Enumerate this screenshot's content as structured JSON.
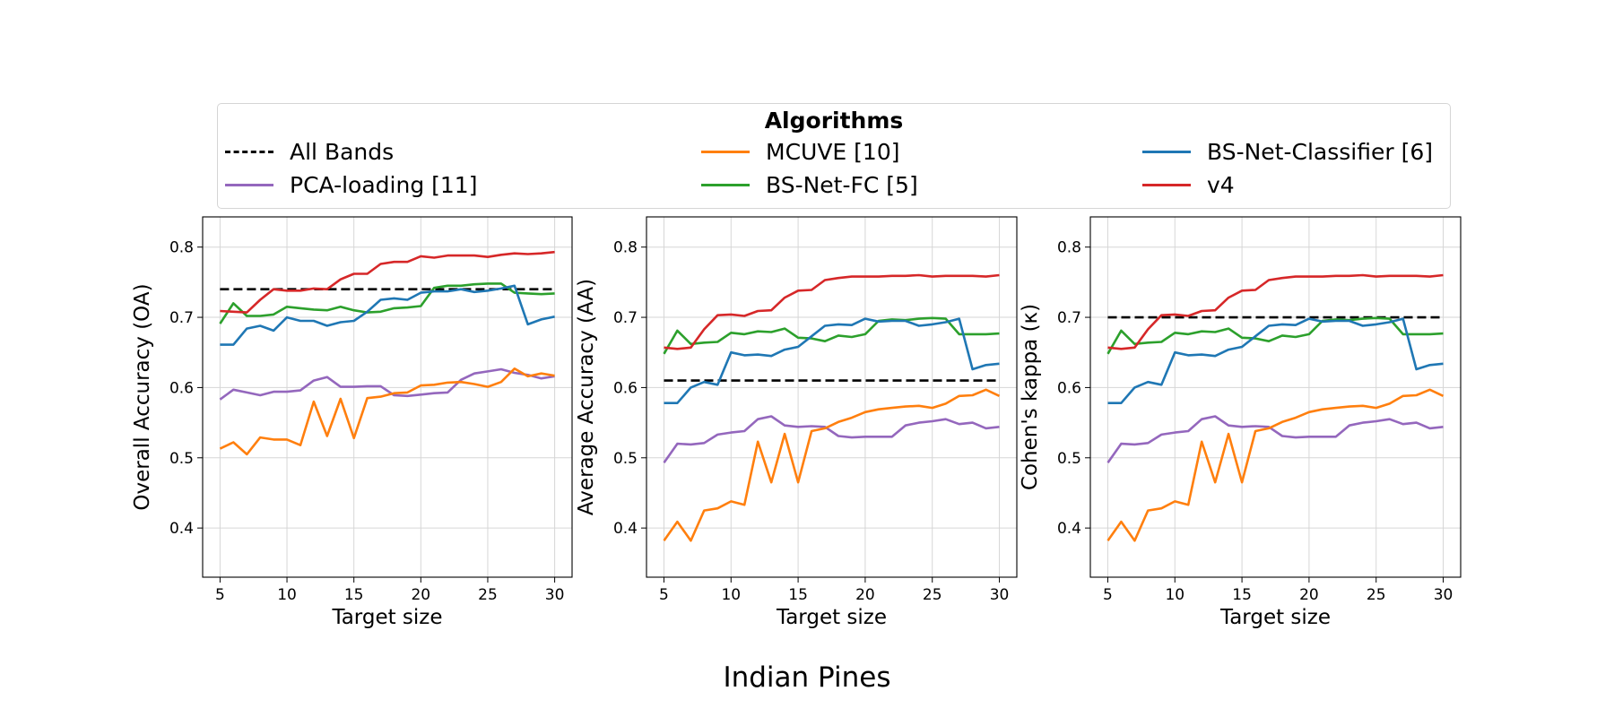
{
  "figure": {
    "suptitle": "Indian Pines",
    "legend_title": "Algorithms"
  },
  "legend": [
    {
      "name": "All Bands",
      "color": "#000000",
      "dashed": true
    },
    {
      "name": "MCUVE [10]",
      "color": "#ff7f0e",
      "dashed": false
    },
    {
      "name": "BS-Net-Classifier [6]",
      "color": "#1f77b4",
      "dashed": false
    },
    {
      "name": "PCA-loading [11]",
      "color": "#9467bd",
      "dashed": false
    },
    {
      "name": "BS-Net-FC [5]",
      "color": "#2ca02c",
      "dashed": false
    },
    {
      "name": "v4",
      "color": "#d62728",
      "dashed": false
    }
  ],
  "chart_data": [
    {
      "type": "line",
      "xlabel": "Target size",
      "ylabel": "Overall Accuracy (OA)",
      "xlim": [
        3.7,
        31.3
      ],
      "ylim": [
        0.33,
        0.843
      ],
      "xticks": [
        5,
        10,
        15,
        20,
        25,
        30
      ],
      "yticks": [
        0.4,
        0.5,
        0.6,
        0.7,
        0.8
      ],
      "grid": true,
      "x": [
        5,
        6,
        7,
        8,
        9,
        10,
        11,
        12,
        13,
        14,
        15,
        16,
        17,
        18,
        19,
        20,
        21,
        22,
        23,
        24,
        25,
        26,
        27,
        28,
        29,
        30
      ],
      "series": [
        {
          "name": "All Bands",
          "color": "#000000",
          "dashed": true,
          "values": [
            0.74,
            0.74,
            0.74,
            0.74,
            0.74,
            0.74,
            0.74,
            0.74,
            0.74,
            0.74,
            0.74,
            0.74,
            0.74,
            0.74,
            0.74,
            0.74,
            0.74,
            0.74,
            0.74,
            0.74,
            0.74,
            0.74,
            0.74,
            0.74,
            0.74,
            0.74
          ]
        },
        {
          "name": "PCA-loading [11]",
          "color": "#9467bd",
          "values": [
            0.583,
            0.597,
            0.593,
            0.589,
            0.594,
            0.594,
            0.596,
            0.61,
            0.615,
            0.601,
            0.601,
            0.602,
            0.602,
            0.589,
            0.588,
            0.59,
            0.592,
            0.593,
            0.611,
            0.62,
            0.623,
            0.626,
            0.621,
            0.618,
            0.613,
            0.616
          ]
        },
        {
          "name": "MCUVE [10]",
          "color": "#ff7f0e",
          "values": [
            0.513,
            0.522,
            0.505,
            0.529,
            0.526,
            0.526,
            0.518,
            0.58,
            0.531,
            0.584,
            0.528,
            0.585,
            0.587,
            0.592,
            0.593,
            0.603,
            0.604,
            0.607,
            0.608,
            0.605,
            0.601,
            0.608,
            0.627,
            0.616,
            0.62,
            0.617
          ]
        },
        {
          "name": "BS-Net-FC [5]",
          "color": "#2ca02c",
          "values": [
            0.691,
            0.72,
            0.702,
            0.702,
            0.704,
            0.715,
            0.713,
            0.711,
            0.71,
            0.715,
            0.71,
            0.707,
            0.708,
            0.713,
            0.714,
            0.716,
            0.742,
            0.745,
            0.745,
            0.747,
            0.748,
            0.748,
            0.735,
            0.734,
            0.733,
            0.734
          ]
        },
        {
          "name": "BS-Net-Classifier [6]",
          "color": "#1f77b4",
          "values": [
            0.661,
            0.661,
            0.684,
            0.688,
            0.681,
            0.7,
            0.695,
            0.695,
            0.688,
            0.693,
            0.695,
            0.708,
            0.725,
            0.727,
            0.725,
            0.735,
            0.737,
            0.737,
            0.74,
            0.736,
            0.738,
            0.741,
            0.745,
            0.69,
            0.697,
            0.701
          ]
        },
        {
          "name": "v4",
          "color": "#d62728",
          "values": [
            0.709,
            0.708,
            0.707,
            0.725,
            0.74,
            0.738,
            0.738,
            0.741,
            0.74,
            0.754,
            0.762,
            0.762,
            0.776,
            0.779,
            0.779,
            0.787,
            0.785,
            0.788,
            0.788,
            0.788,
            0.786,
            0.789,
            0.791,
            0.79,
            0.791,
            0.793
          ]
        }
      ]
    },
    {
      "type": "line",
      "xlabel": "Target size",
      "ylabel": "Average Accuracy (AA)",
      "xlim": [
        3.7,
        31.3
      ],
      "ylim": [
        0.33,
        0.843
      ],
      "xticks": [
        5,
        10,
        15,
        20,
        25,
        30
      ],
      "yticks": [
        0.4,
        0.5,
        0.6,
        0.7,
        0.8
      ],
      "grid": true,
      "x": [
        5,
        6,
        7,
        8,
        9,
        10,
        11,
        12,
        13,
        14,
        15,
        16,
        17,
        18,
        19,
        20,
        21,
        22,
        23,
        24,
        25,
        26,
        27,
        28,
        29,
        30
      ],
      "series": [
        {
          "name": "All Bands",
          "color": "#000000",
          "dashed": true,
          "values": [
            0.61,
            0.61,
            0.61,
            0.61,
            0.61,
            0.61,
            0.61,
            0.61,
            0.61,
            0.61,
            0.61,
            0.61,
            0.61,
            0.61,
            0.61,
            0.61,
            0.61,
            0.61,
            0.61,
            0.61,
            0.61,
            0.61,
            0.61,
            0.61,
            0.61,
            0.61
          ]
        },
        {
          "name": "PCA-loading [11]",
          "color": "#9467bd",
          "values": [
            0.493,
            0.52,
            0.519,
            0.521,
            0.533,
            0.536,
            0.538,
            0.555,
            0.559,
            0.546,
            0.544,
            0.545,
            0.544,
            0.531,
            0.529,
            0.53,
            0.53,
            0.53,
            0.546,
            0.55,
            0.552,
            0.555,
            0.548,
            0.55,
            0.542,
            0.544
          ]
        },
        {
          "name": "MCUVE [10]",
          "color": "#ff7f0e",
          "values": [
            0.382,
            0.409,
            0.382,
            0.425,
            0.428,
            0.438,
            0.433,
            0.523,
            0.465,
            0.534,
            0.465,
            0.538,
            0.542,
            0.551,
            0.557,
            0.565,
            0.569,
            0.571,
            0.573,
            0.574,
            0.571,
            0.577,
            0.588,
            0.589,
            0.597,
            0.588
          ]
        },
        {
          "name": "BS-Net-FC [5]",
          "color": "#2ca02c",
          "values": [
            0.648,
            0.681,
            0.662,
            0.664,
            0.665,
            0.678,
            0.676,
            0.68,
            0.679,
            0.684,
            0.671,
            0.67,
            0.666,
            0.674,
            0.672,
            0.676,
            0.695,
            0.697,
            0.696,
            0.698,
            0.699,
            0.698,
            0.676,
            0.676,
            0.676,
            0.677
          ]
        },
        {
          "name": "BS-Net-Classifier [6]",
          "color": "#1f77b4",
          "values": [
            0.578,
            0.578,
            0.6,
            0.608,
            0.604,
            0.65,
            0.646,
            0.647,
            0.645,
            0.654,
            0.658,
            0.673,
            0.688,
            0.69,
            0.689,
            0.698,
            0.694,
            0.695,
            0.695,
            0.688,
            0.69,
            0.693,
            0.698,
            0.626,
            0.632,
            0.634
          ]
        },
        {
          "name": "v4",
          "color": "#d62728",
          "values": [
            0.657,
            0.655,
            0.657,
            0.683,
            0.703,
            0.704,
            0.702,
            0.709,
            0.71,
            0.728,
            0.738,
            0.739,
            0.753,
            0.756,
            0.758,
            0.758,
            0.758,
            0.759,
            0.759,
            0.76,
            0.758,
            0.759,
            0.759,
            0.759,
            0.758,
            0.76
          ]
        }
      ]
    },
    {
      "type": "line",
      "xlabel": "Target size",
      "ylabel": "Cohen's kappa (κ)",
      "xlim": [
        3.7,
        31.3
      ],
      "ylim": [
        0.33,
        0.843
      ],
      "xticks": [
        5,
        10,
        15,
        20,
        25,
        30
      ],
      "yticks": [
        0.4,
        0.5,
        0.6,
        0.7,
        0.8
      ],
      "grid": true,
      "x": [
        5,
        6,
        7,
        8,
        9,
        10,
        11,
        12,
        13,
        14,
        15,
        16,
        17,
        18,
        19,
        20,
        21,
        22,
        23,
        24,
        25,
        26,
        27,
        28,
        29,
        30
      ],
      "series": [
        {
          "name": "All Bands",
          "color": "#000000",
          "dashed": true,
          "values": [
            0.7,
            0.7,
            0.7,
            0.7,
            0.7,
            0.7,
            0.7,
            0.7,
            0.7,
            0.7,
            0.7,
            0.7,
            0.7,
            0.7,
            0.7,
            0.7,
            0.7,
            0.7,
            0.7,
            0.7,
            0.7,
            0.7,
            0.7,
            0.7,
            0.7,
            0.7
          ]
        },
        {
          "name": "PCA-loading [11]",
          "color": "#9467bd",
          "values": [
            0.493,
            0.52,
            0.519,
            0.521,
            0.533,
            0.536,
            0.538,
            0.555,
            0.559,
            0.546,
            0.544,
            0.545,
            0.544,
            0.531,
            0.529,
            0.53,
            0.53,
            0.53,
            0.546,
            0.55,
            0.552,
            0.555,
            0.548,
            0.55,
            0.542,
            0.544
          ]
        },
        {
          "name": "MCUVE [10]",
          "color": "#ff7f0e",
          "values": [
            0.382,
            0.409,
            0.382,
            0.425,
            0.428,
            0.438,
            0.433,
            0.523,
            0.465,
            0.534,
            0.465,
            0.538,
            0.542,
            0.551,
            0.557,
            0.565,
            0.569,
            0.571,
            0.573,
            0.574,
            0.571,
            0.577,
            0.588,
            0.589,
            0.597,
            0.588
          ]
        },
        {
          "name": "BS-Net-FC [5]",
          "color": "#2ca02c",
          "values": [
            0.648,
            0.681,
            0.662,
            0.664,
            0.665,
            0.678,
            0.676,
            0.68,
            0.679,
            0.684,
            0.671,
            0.67,
            0.666,
            0.674,
            0.672,
            0.676,
            0.695,
            0.697,
            0.696,
            0.698,
            0.699,
            0.698,
            0.676,
            0.676,
            0.676,
            0.677
          ]
        },
        {
          "name": "BS-Net-Classifier [6]",
          "color": "#1f77b4",
          "values": [
            0.578,
            0.578,
            0.6,
            0.608,
            0.604,
            0.65,
            0.646,
            0.647,
            0.645,
            0.654,
            0.658,
            0.673,
            0.688,
            0.69,
            0.689,
            0.698,
            0.694,
            0.695,
            0.695,
            0.688,
            0.69,
            0.693,
            0.698,
            0.626,
            0.632,
            0.634
          ]
        },
        {
          "name": "v4",
          "color": "#d62728",
          "values": [
            0.657,
            0.655,
            0.657,
            0.683,
            0.703,
            0.704,
            0.702,
            0.709,
            0.71,
            0.728,
            0.738,
            0.739,
            0.753,
            0.756,
            0.758,
            0.758,
            0.758,
            0.759,
            0.759,
            0.76,
            0.758,
            0.759,
            0.759,
            0.759,
            0.758,
            0.76
          ]
        }
      ]
    }
  ]
}
